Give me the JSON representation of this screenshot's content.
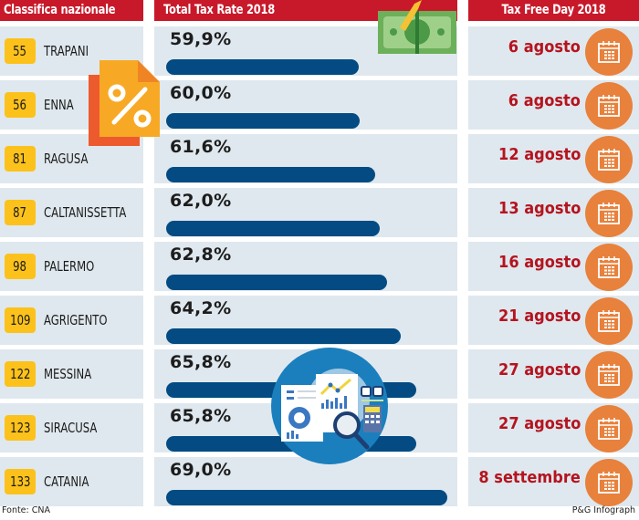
{
  "headers": {
    "rank": "Classifica nazionale",
    "rate": "Total Tax Rate 2018",
    "day": "Tax Free Day 2018"
  },
  "rows": [
    {
      "rank": "55",
      "city": "TRAPANI",
      "rate_label": "59,9%",
      "date": "6 agosto"
    },
    {
      "rank": "56",
      "city": "ENNA",
      "rate_label": "60,0%",
      "date": "6 agosto"
    },
    {
      "rank": "81",
      "city": "RAGUSA",
      "rate_label": "61,6%",
      "date": "12 agosto"
    },
    {
      "rank": "87",
      "city": "CALTANISSETTA",
      "rate_label": "62,0%",
      "date": "13 agosto"
    },
    {
      "rank": "98",
      "city": "PALERMO",
      "rate_label": "62,8%",
      "date": "16 agosto"
    },
    {
      "rank": "109",
      "city": "AGRIGENTO",
      "rate_label": "64,2%",
      "date": "21 agosto"
    },
    {
      "rank": "122",
      "city": "MESSINA",
      "rate_label": "65,8%",
      "date": "27 agosto"
    },
    {
      "rank": "123",
      "city": "SIRACUSA",
      "rate_label": "65,8%",
      "date": "27 agosto"
    },
    {
      "rank": "133",
      "city": "CATANIA",
      "rate_label": "69,0%",
      "date": "8 settembre"
    }
  ],
  "footer": {
    "source": "Fonte: CNA",
    "credit": "P&G Infograph"
  },
  "colors": {
    "header_bg": "#c8192a",
    "row_bg": "#dfe8ee",
    "rank_badge": "#fcc21b",
    "bar": "#034b82",
    "date_text": "#b5141f",
    "calendar_circle": "#e8813c"
  },
  "chart_data": {
    "type": "bar",
    "orientation": "horizontal",
    "title": "Total Tax Rate 2018",
    "categories": [
      "TRAPANI",
      "ENNA",
      "RAGUSA",
      "CALTANISSETTA",
      "PALERMO",
      "AGRIGENTO",
      "MESSINA",
      "SIRACUSA",
      "CATANIA"
    ],
    "values": [
      59.9,
      60.0,
      61.6,
      62.0,
      62.8,
      64.2,
      65.8,
      65.8,
      69.0
    ],
    "unit": "%",
    "national_rank": [
      55,
      56,
      81,
      87,
      98,
      109,
      122,
      123,
      133
    ],
    "tax_free_day": [
      "6 agosto",
      "6 agosto",
      "12 agosto",
      "13 agosto",
      "16 agosto",
      "21 agosto",
      "27 agosto",
      "27 agosto",
      "8 settembre"
    ],
    "xlabel": "",
    "ylabel": "",
    "source": "Fonte: CNA"
  }
}
